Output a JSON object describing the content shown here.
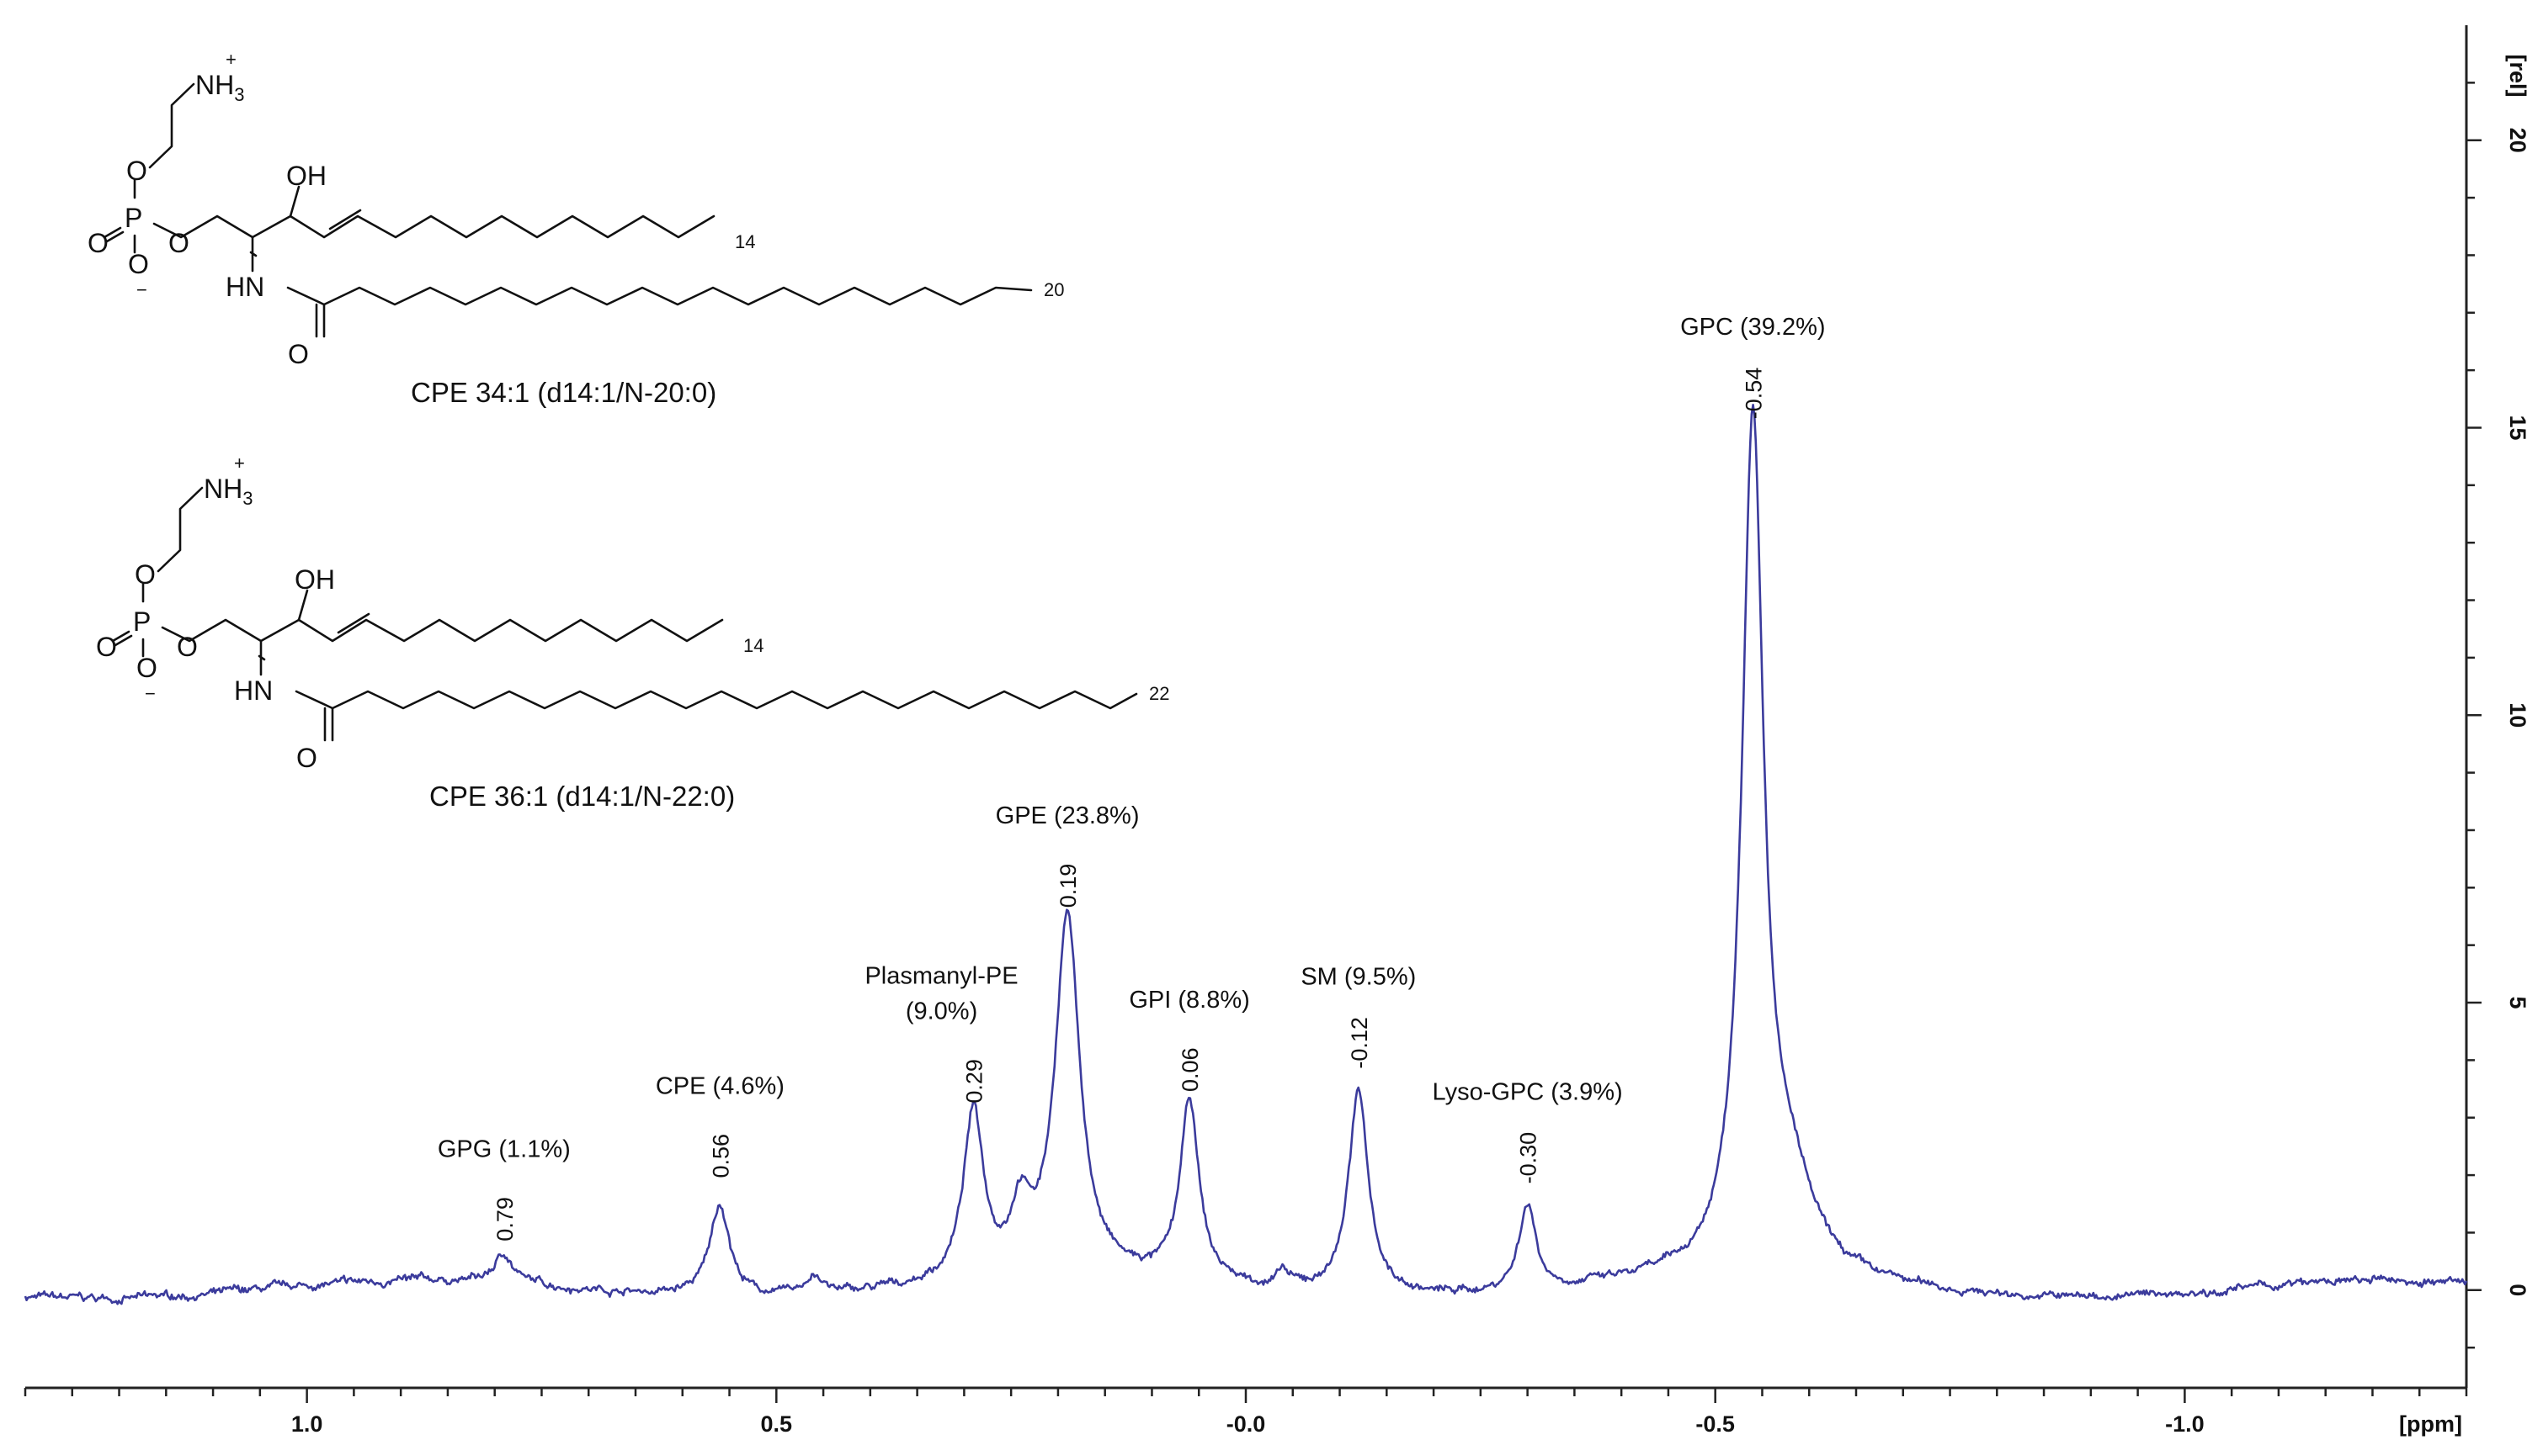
{
  "chart_data": {
    "type": "line",
    "x_unit": "[ppm]",
    "y_unit": "[rel]",
    "xlim": [
      1.3,
      -1.3
    ],
    "ylim": [
      -1.7,
      22.0
    ],
    "x_ticks": [
      {
        "value": 1.0,
        "label": "1.0"
      },
      {
        "value": 0.5,
        "label": "0.5"
      },
      {
        "value": 0.0,
        "label": "-0.0"
      },
      {
        "value": -0.5,
        "label": "-0.5"
      },
      {
        "value": -1.0,
        "label": "-1.0"
      }
    ],
    "y_ticks": [
      {
        "value": 0,
        "label": "0"
      },
      {
        "value": 5,
        "label": "5"
      },
      {
        "value": 10,
        "label": "10"
      },
      {
        "value": 15,
        "label": "15"
      },
      {
        "value": 20,
        "label": "20"
      }
    ],
    "baseline": 0.0,
    "series_color": "#3b3b9c",
    "peaks": [
      {
        "name": "GPG (1.1%)",
        "shift_label": "0.79",
        "x": 0.79,
        "height": 0.5,
        "width": 0.012
      },
      {
        "name": "CPE (4.6%)",
        "shift_label": "0.56",
        "x": 0.56,
        "height": 1.6,
        "width": 0.013
      },
      {
        "name": "Plasmanyl-PE",
        "name2": "(9.0%)",
        "shift_label": "0.29",
        "x": 0.29,
        "height": 2.9,
        "width": 0.013
      },
      {
        "name": "GPE (23.8%)",
        "shift_label": "0.19",
        "x": 0.19,
        "height": 6.3,
        "width": 0.016
      },
      {
        "name": "GPI (8.8%)",
        "shift_label": "0.06",
        "x": 0.06,
        "height": 3.1,
        "width": 0.012
      },
      {
        "name": "SM (9.5%)",
        "shift_label": "-0.12",
        "x": -0.12,
        "height": 3.5,
        "width": 0.013
      },
      {
        "name": "Lyso-GPC (3.9%)",
        "shift_label": "-0.30",
        "x": -0.3,
        "height": 1.5,
        "width": 0.011
      },
      {
        "name": "GPC (39.2%)",
        "shift_label": "-0.54",
        "x": -0.54,
        "height": 14.8,
        "width": 0.014
      }
    ],
    "shoulders": [
      {
        "x": 0.24,
        "height": 1.1,
        "width": 0.012
      },
      {
        "x": 0.46,
        "height": 0.35,
        "width": 0.01
      },
      {
        "x": -0.04,
        "height": 0.25,
        "width": 0.006
      },
      {
        "x": -0.58,
        "height": 1.4,
        "width": 0.03
      }
    ]
  },
  "structures": [
    {
      "caption": "CPE 34:1 (d14:1/N-20:0)",
      "ammonium": "NH",
      "ammonium_sub": "3",
      "ammonium_charge": "+",
      "hydroxyl": "OH",
      "amide": "HN",
      "phosphorus": "P",
      "oxygen": "O",
      "anion_charge": "−",
      "chain1_count": "14",
      "chain2_count": "20"
    },
    {
      "caption": "CPE 36:1 (d14:1/N-22:0)",
      "ammonium": "NH",
      "ammonium_sub": "3",
      "ammonium_charge": "+",
      "hydroxyl": "OH",
      "amide": "HN",
      "phosphorus": "P",
      "oxygen": "O",
      "anion_charge": "−",
      "chain1_count": "14",
      "chain2_count": "22"
    }
  ]
}
